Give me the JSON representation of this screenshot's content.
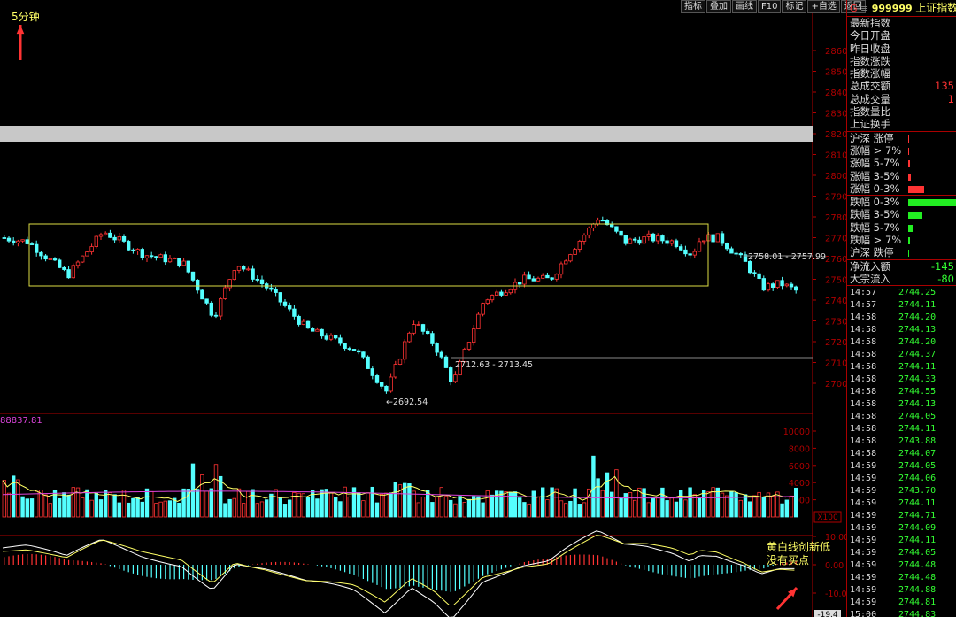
{
  "colors": {
    "up": "#ff3333",
    "down": "#54ffff",
    "yellow": "#ffff66",
    "green": "#33ff33",
    "magenta": "#dd44dd",
    "axis": "#b00000"
  },
  "toolbar": {
    "buttons": [
      "指标",
      "叠加",
      "画线",
      "F10",
      "标记",
      "+自选",
      "返回"
    ]
  },
  "chart": {
    "period_label": "5分钟",
    "y_ticks": [
      "2860",
      "2850",
      "2840",
      "2830",
      "2820",
      "2810",
      "2800",
      "2790",
      "2780",
      "2770",
      "2760",
      "2750",
      "2740",
      "2730",
      "2720",
      "2710",
      "2700"
    ],
    "annotations": {
      "range_high": "2758.01 - 2757.99",
      "range_mid": "2712.63 - 2713.45",
      "low": "←2692.54"
    }
  },
  "volume": {
    "label": "88837.81",
    "y_ticks": [
      "10000",
      "8000",
      "6000",
      "4000",
      "2000"
    ],
    "unit": "X100"
  },
  "macd": {
    "y_ticks": [
      "10.00",
      "0.00",
      "-10.00"
    ],
    "bottom_value": "-19.4",
    "note_line1": "黄白线创新低",
    "note_line2": "没有买点"
  },
  "quote": {
    "marker": "G",
    "code": "999999",
    "name": "上证指数",
    "fields": [
      {
        "label": "最新指数",
        "value": ""
      },
      {
        "label": "今日开盘",
        "value": ""
      },
      {
        "label": "昨日收盘",
        "value": ""
      },
      {
        "label": "指数涨跌",
        "value": ""
      },
      {
        "label": "指数涨幅",
        "value": ""
      },
      {
        "label": "总成交额",
        "value": "135"
      },
      {
        "label": "总成交量",
        "value": "1"
      },
      {
        "label": "指数量比",
        "value": ""
      },
      {
        "label": "上证换手",
        "value": ""
      }
    ],
    "breadth_up": [
      {
        "label": "沪深 涨停",
        "bar": 0.02
      },
      {
        "label": "涨幅 > 7%",
        "bar": 0.02
      },
      {
        "label": "涨幅 5-7%",
        "bar": 0.03
      },
      {
        "label": "涨幅 3-5%",
        "bar": 0.06
      },
      {
        "label": "涨幅 0-3%",
        "bar": 0.33
      }
    ],
    "breadth_down": [
      {
        "label": "跌幅 0-3%",
        "bar": 1.0
      },
      {
        "label": "跌幅 3-5%",
        "bar": 0.3
      },
      {
        "label": "跌幅 5-7%",
        "bar": 0.09
      },
      {
        "label": "跌幅 > 7%",
        "bar": 0.04
      },
      {
        "label": "沪深 跌停",
        "bar": 0.02
      }
    ],
    "flows": [
      {
        "label": "净流入额",
        "value": "-145"
      },
      {
        "label": "大宗流入",
        "value": "-80"
      }
    ],
    "ticks": [
      {
        "time": "14:57",
        "price": "2744.25"
      },
      {
        "time": "14:57",
        "price": "2744.11"
      },
      {
        "time": "14:58",
        "price": "2744.20"
      },
      {
        "time": "14:58",
        "price": "2744.13"
      },
      {
        "time": "14:58",
        "price": "2744.20"
      },
      {
        "time": "14:58",
        "price": "2744.37"
      },
      {
        "time": "14:58",
        "price": "2744.11"
      },
      {
        "time": "14:58",
        "price": "2744.33"
      },
      {
        "time": "14:58",
        "price": "2744.55"
      },
      {
        "time": "14:58",
        "price": "2744.13"
      },
      {
        "time": "14:58",
        "price": "2744.05"
      },
      {
        "time": "14:58",
        "price": "2744.11"
      },
      {
        "time": "14:58",
        "price": "2743.88"
      },
      {
        "time": "14:58",
        "price": "2744.07"
      },
      {
        "time": "14:59",
        "price": "2744.05"
      },
      {
        "time": "14:59",
        "price": "2744.06"
      },
      {
        "time": "14:59",
        "price": "2743.70"
      },
      {
        "time": "14:59",
        "price": "2744.11"
      },
      {
        "time": "14:59",
        "price": "2744.71"
      },
      {
        "time": "14:59",
        "price": "2744.09"
      },
      {
        "time": "14:59",
        "price": "2744.11"
      },
      {
        "time": "14:59",
        "price": "2744.05"
      },
      {
        "time": "14:59",
        "price": "2744.48"
      },
      {
        "time": "14:59",
        "price": "2744.48"
      },
      {
        "time": "14:59",
        "price": "2744.88"
      },
      {
        "time": "14:59",
        "price": "2744.81"
      },
      {
        "time": "15:00",
        "price": "2744.83"
      }
    ]
  }
}
